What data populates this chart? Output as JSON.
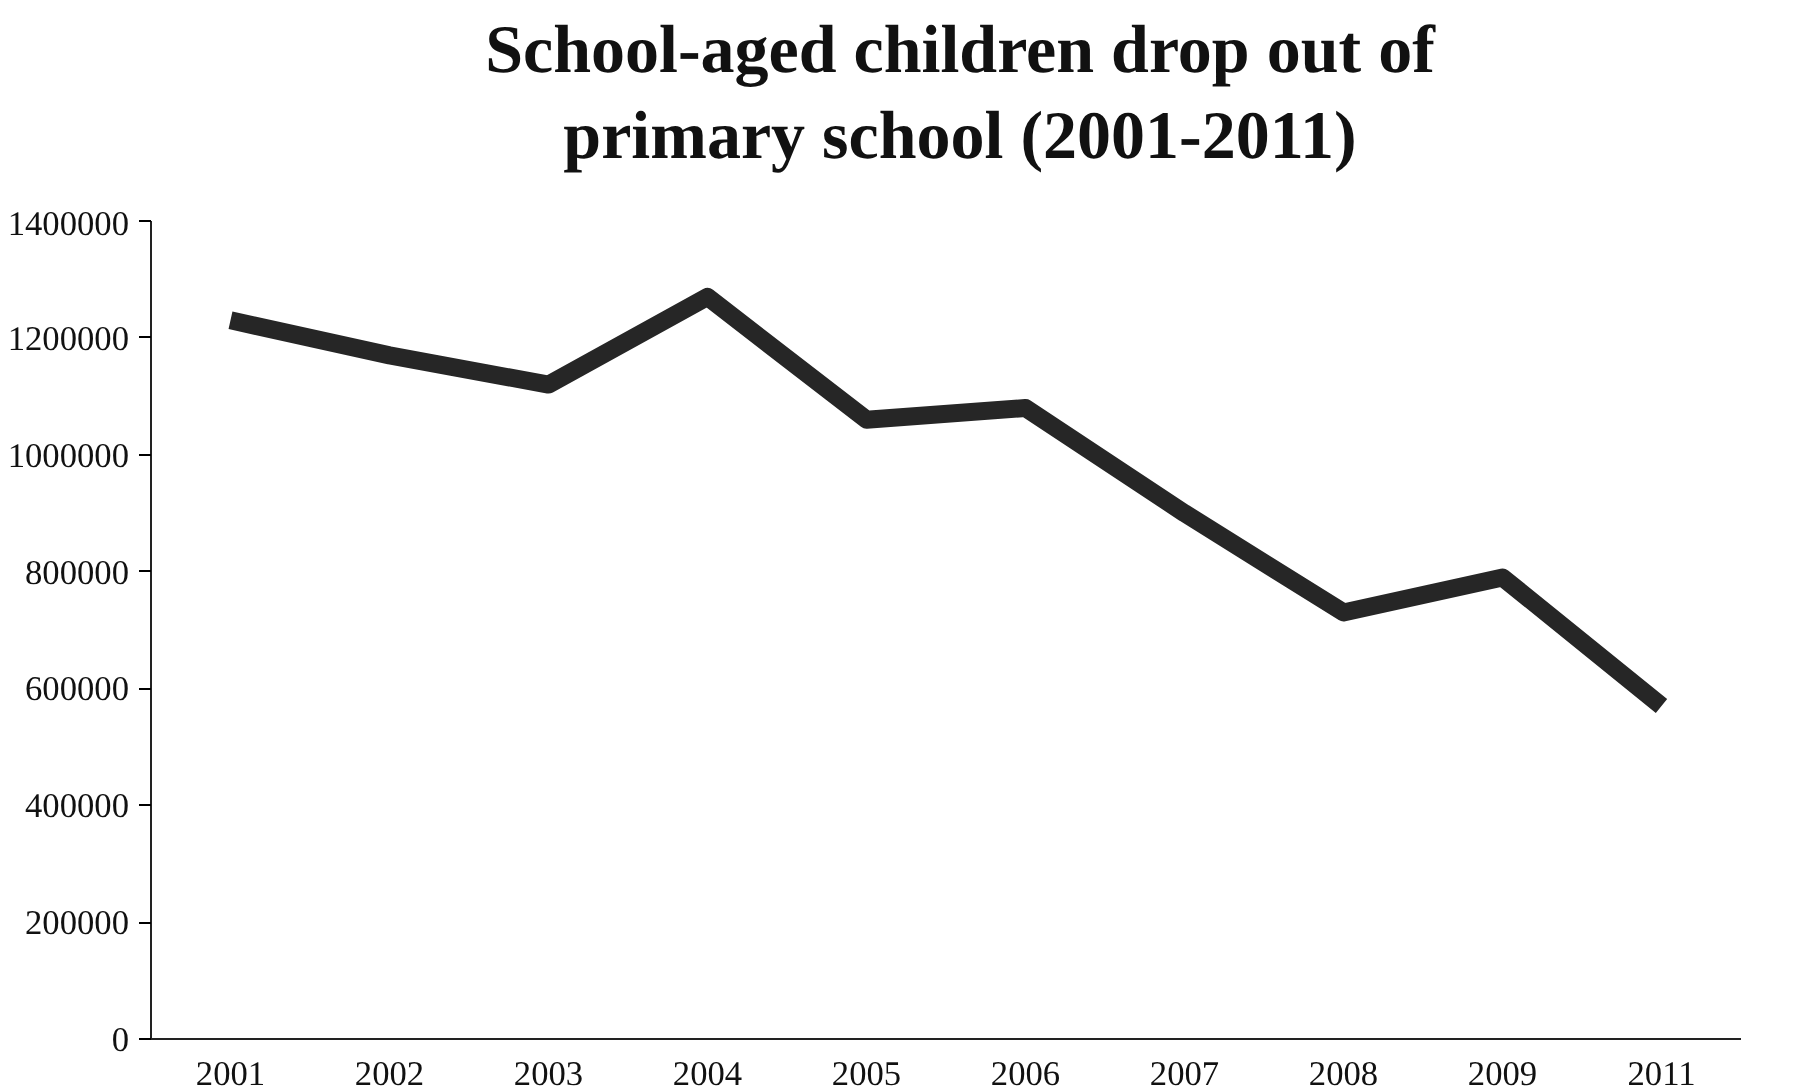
{
  "chart_data": {
    "type": "line",
    "title": "School-aged children drop out of primary school (2001-2011)",
    "categories": [
      "2001",
      "2002",
      "2003",
      "2004",
      "2005",
      "2006",
      "2007",
      "2008",
      "2009",
      "2011"
    ],
    "series": [
      {
        "color": "#262626",
        "values": [
          1230000,
          1170000,
          1120000,
          1270000,
          1060000,
          1080000,
          900000,
          730000,
          790000,
          570000
        ]
      }
    ],
    "ylim": [
      0,
      1400000
    ],
    "yticks": [
      0,
      200000,
      400000,
      600000,
      800000,
      1000000,
      1200000,
      1400000
    ],
    "grid": false,
    "marker": "none",
    "line_style": "solid"
  }
}
